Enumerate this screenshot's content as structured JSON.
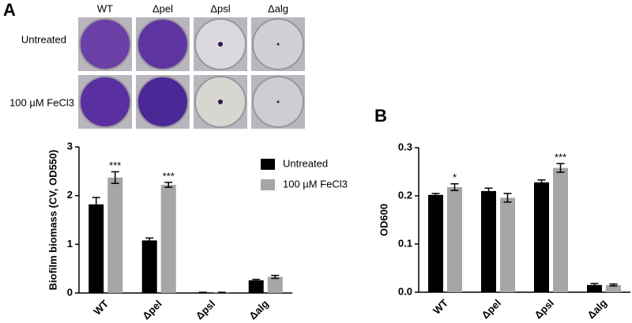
{
  "panel_labels": [
    "A",
    "B"
  ],
  "wells": {
    "columns": [
      "WT",
      "Δpel",
      "Δpsl",
      "Δalg"
    ],
    "rows": [
      "Untreated",
      "100 µM FeCl3"
    ]
  },
  "chart_data": [
    {
      "type": "bar",
      "ylabel": "Biofilm biomass (CV, OD550)",
      "categories": [
        "WT",
        "Δpel",
        "Δpsl",
        "Δalg"
      ],
      "series": [
        {
          "name": "Untreated",
          "color": "#000000",
          "values": [
            1.82,
            1.08,
            0.01,
            0.26
          ],
          "errors": [
            0.14,
            0.05,
            0.005,
            0.02
          ],
          "value_annotations": [
            null,
            null,
            null,
            null
          ]
        },
        {
          "name": "100 µM FeCl3",
          "color": "#a6a6a6",
          "values": [
            2.37,
            2.22,
            0.01,
            0.33
          ],
          "errors": [
            0.12,
            0.05,
            0.005,
            0.03
          ],
          "value_annotations": [
            "***",
            "***",
            null,
            null
          ]
        }
      ],
      "ylim": [
        0,
        3
      ],
      "yticks": [
        0,
        1,
        2,
        3
      ],
      "legend": "upper right"
    },
    {
      "type": "bar",
      "ylabel": "OD600",
      "categories": [
        "WT",
        "Δpel",
        "Δpsl",
        "Δalg"
      ],
      "series": [
        {
          "name": "Untreated",
          "color": "#000000",
          "values": [
            0.202,
            0.21,
            0.228,
            0.015
          ],
          "errors": [
            0.003,
            0.006,
            0.005,
            0.003
          ],
          "value_annotations": [
            null,
            null,
            null,
            null
          ]
        },
        {
          "name": "100 µM FeCl3",
          "color": "#a6a6a6",
          "values": [
            0.218,
            0.196,
            0.258,
            0.015
          ],
          "errors": [
            0.007,
            0.009,
            0.009,
            0.002
          ],
          "value_annotations": [
            "*",
            null,
            "***",
            null
          ]
        }
      ],
      "ylim": [
        0,
        0.3
      ],
      "yticks": [
        {
          "value": 0,
          "label": "0.0"
        },
        0.1,
        0.2,
        0.3
      ]
    }
  ]
}
